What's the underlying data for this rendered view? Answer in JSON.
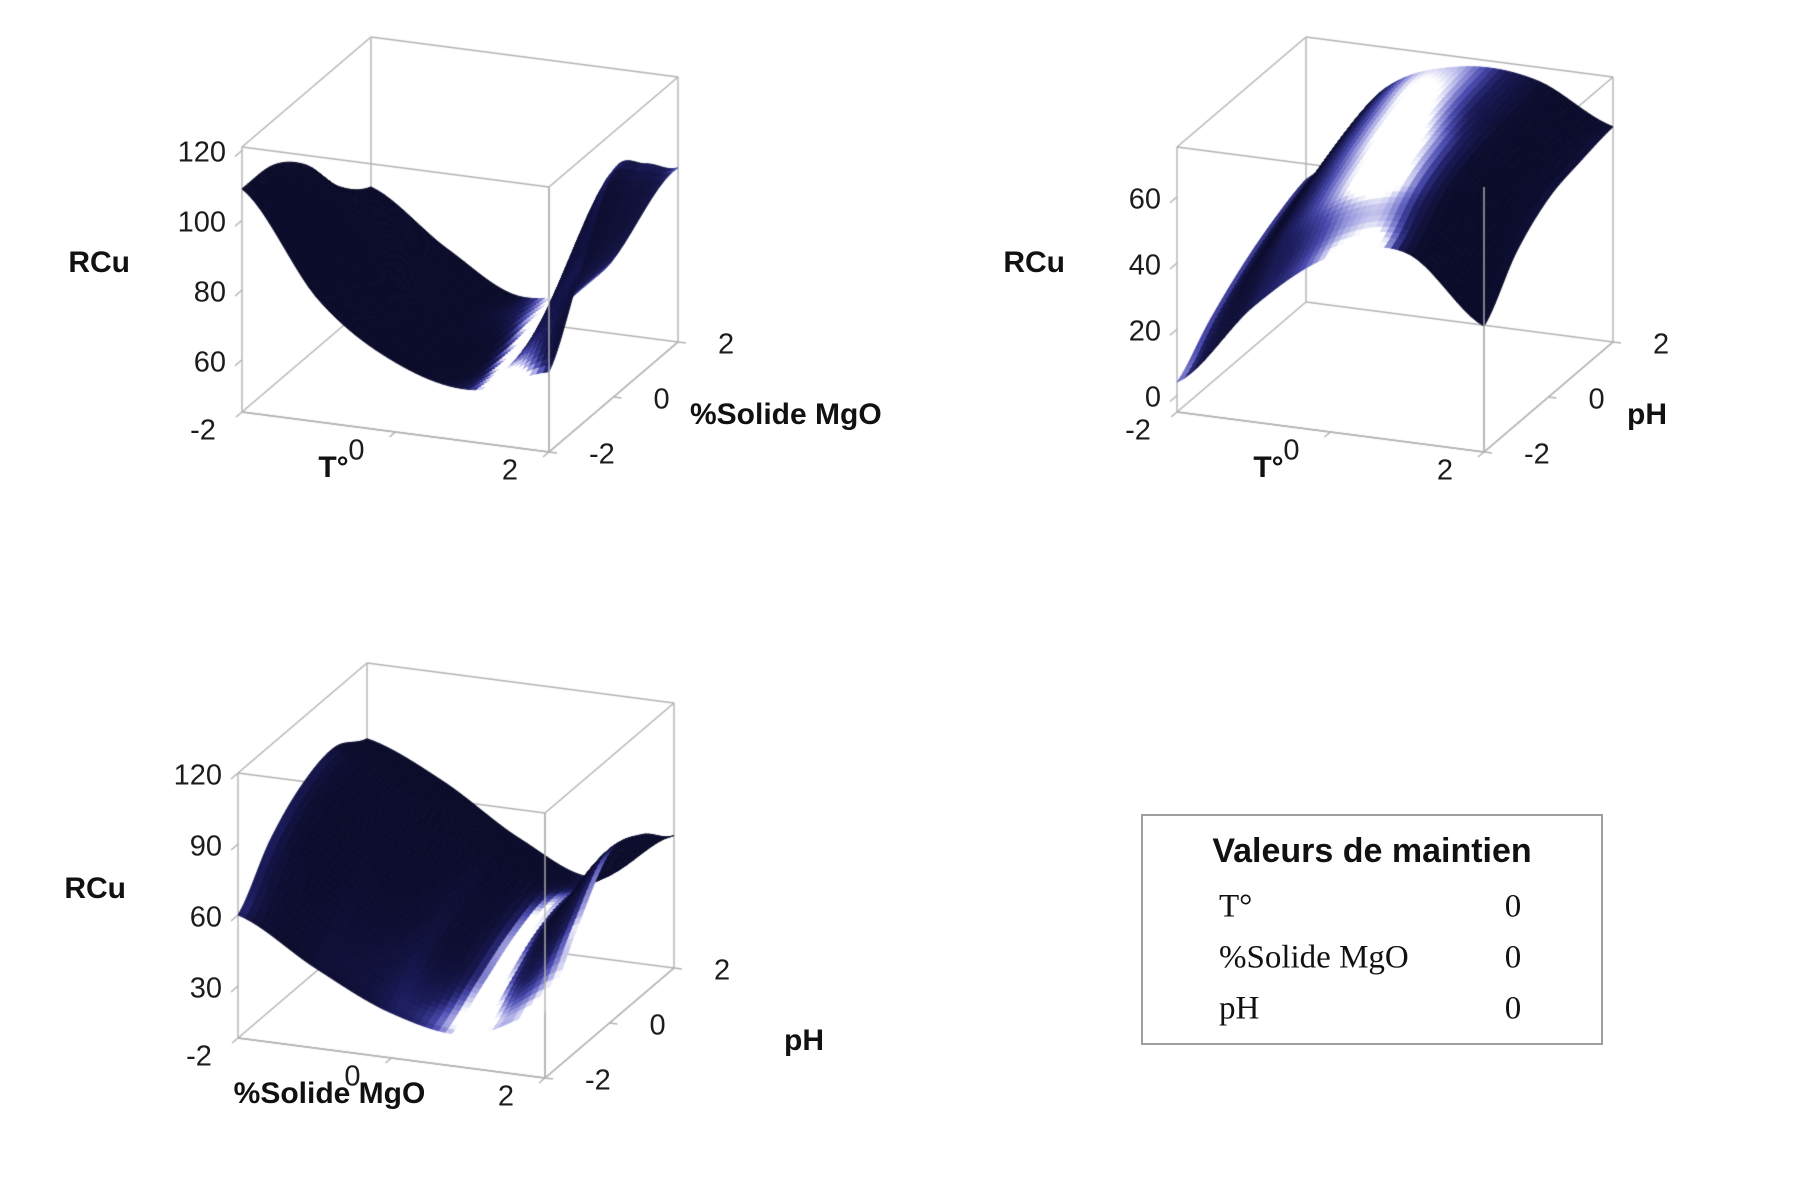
{
  "legend": {
    "title": "Valeurs de maintien",
    "rows": [
      {
        "label": "T°",
        "value": "0"
      },
      {
        "label": "%Solide MgO",
        "value": "0"
      },
      {
        "label": "pH",
        "value": "0"
      }
    ]
  },
  "chart_data": [
    {
      "type": "surface3d",
      "response": "RCu",
      "zlabel": "RCu",
      "xlabel": "T°",
      "ylabel": "%Solide MgO",
      "x_ticks": [
        "-2",
        "0",
        "2"
      ],
      "y_ticks": [
        "-2",
        "0",
        "2"
      ],
      "z_ticks": [
        "60",
        "80",
        "100",
        "120"
      ],
      "x_tick_values": [
        -2,
        0,
        2
      ],
      "y_tick_values": [
        -2,
        0,
        2
      ],
      "z_tick_values": [
        60,
        80,
        100,
        120
      ],
      "x_values": [
        -2,
        -1,
        0,
        1,
        2
      ],
      "y_values": [
        -2,
        -1,
        0,
        1,
        2
      ],
      "z_min": 45,
      "z_max": 121,
      "z_grid": [
        [
          109,
          80,
          65,
          60,
          68
        ],
        [
          108,
          76,
          62,
          58,
          90
        ],
        [
          100,
          72,
          58,
          60,
          110
        ],
        [
          86,
          66,
          55,
          62,
          104
        ],
        [
          78,
          63,
          52,
          62,
          95
        ]
      ]
    },
    {
      "type": "surface3d",
      "response": "RCu",
      "zlabel": "RCu",
      "xlabel": "T°",
      "ylabel": "pH",
      "x_ticks": [
        "-2",
        "0",
        "2"
      ],
      "y_ticks": [
        "-2",
        "0",
        "2"
      ],
      "z_ticks": [
        "0",
        "20",
        "40",
        "60"
      ],
      "x_tick_values": [
        -2,
        0,
        2
      ],
      "y_tick_values": [
        -2,
        0,
        2
      ],
      "z_tick_values": [
        0,
        20,
        40,
        60
      ],
      "x_values": [
        -2,
        -1,
        0,
        1,
        2
      ],
      "y_values": [
        -2,
        -1,
        0,
        1,
        2
      ],
      "z_min": -5,
      "z_max": 75,
      "z_grid": [
        [
          4,
          30,
          48,
          52,
          33
        ],
        [
          14,
          44,
          60,
          62,
          47
        ],
        [
          22,
          52,
          66,
          67,
          55
        ],
        [
          28,
          58,
          70,
          69,
          58
        ],
        [
          32,
          62,
          72,
          71,
          60
        ]
      ]
    },
    {
      "type": "surface3d",
      "response": "RCu",
      "zlabel": "RCu",
      "xlabel": "%Solide MgO",
      "ylabel": "pH",
      "x_ticks": [
        "-2",
        "0",
        "2"
      ],
      "y_ticks": [
        "-2",
        "0",
        "2"
      ],
      "z_ticks": [
        "30",
        "60",
        "90",
        "120"
      ],
      "x_tick_values": [
        -2,
        0,
        2
      ],
      "y_tick_values": [
        -2,
        0,
        2
      ],
      "z_tick_values": [
        30,
        60,
        90,
        120
      ],
      "x_values": [
        -2,
        -1,
        0,
        1,
        2
      ],
      "y_values": [
        -2,
        -1,
        0,
        1,
        2
      ],
      "z_min": 8,
      "z_max": 120,
      "z_grid": [
        [
          60,
          42,
          27,
          22,
          36
        ],
        [
          80,
          60,
          42,
          32,
          60
        ],
        [
          92,
          72,
          52,
          42,
          80
        ],
        [
          96,
          80,
          58,
          46,
          76
        ],
        [
          88,
          74,
          54,
          42,
          64
        ]
      ]
    }
  ],
  "colors": {
    "surface_darkest": "#0b0b2a",
    "surface_dark": "#1c1c5e",
    "surface_mid": "#4b4bb0",
    "surface_light": "#a6a6e4",
    "surface_specular": "#ffffff",
    "box_line": "#b2b2b2",
    "text": "#1c1c1c"
  }
}
